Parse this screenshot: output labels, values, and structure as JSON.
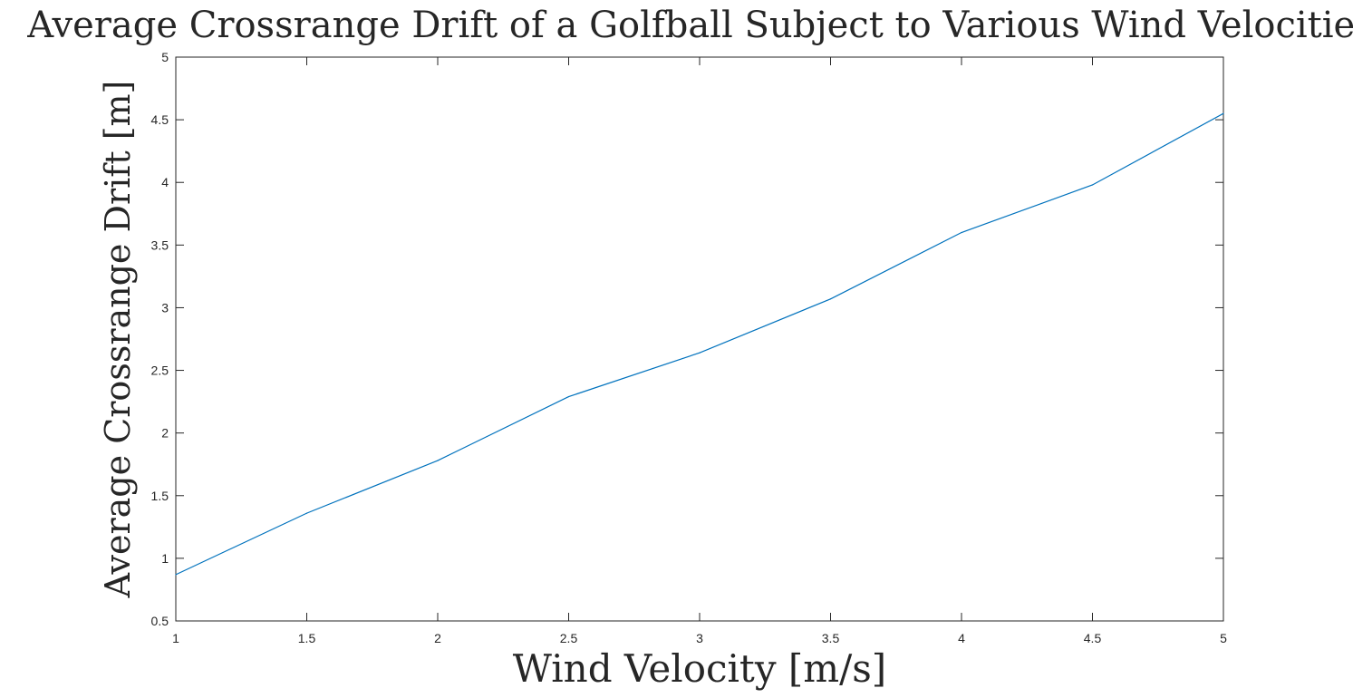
{
  "chart_data": {
    "type": "line",
    "title": "Average Crossrange Drift of a Golfball Subject to Various Wind Velocities",
    "xlabel": "Wind Velocity [m/s]",
    "ylabel": "Average Crossrange Drift [m]",
    "xlim": [
      1,
      5
    ],
    "ylim": [
      0.5,
      5
    ],
    "xticks": [
      "1",
      "1.5",
      "2",
      "2.5",
      "3",
      "3.5",
      "4",
      "4.5",
      "5"
    ],
    "yticks": [
      "0.5",
      "1",
      "1.5",
      "2",
      "2.5",
      "3",
      "3.5",
      "4",
      "4.5",
      "5"
    ],
    "grid": false,
    "series": [
      {
        "color": "#0072BD",
        "x": [
          1,
          1.5,
          2,
          2.5,
          3,
          3.5,
          4,
          4.5,
          5
        ],
        "y": [
          0.87,
          1.36,
          1.78,
          2.29,
          2.64,
          3.07,
          3.6,
          3.98,
          4.55
        ]
      }
    ]
  }
}
